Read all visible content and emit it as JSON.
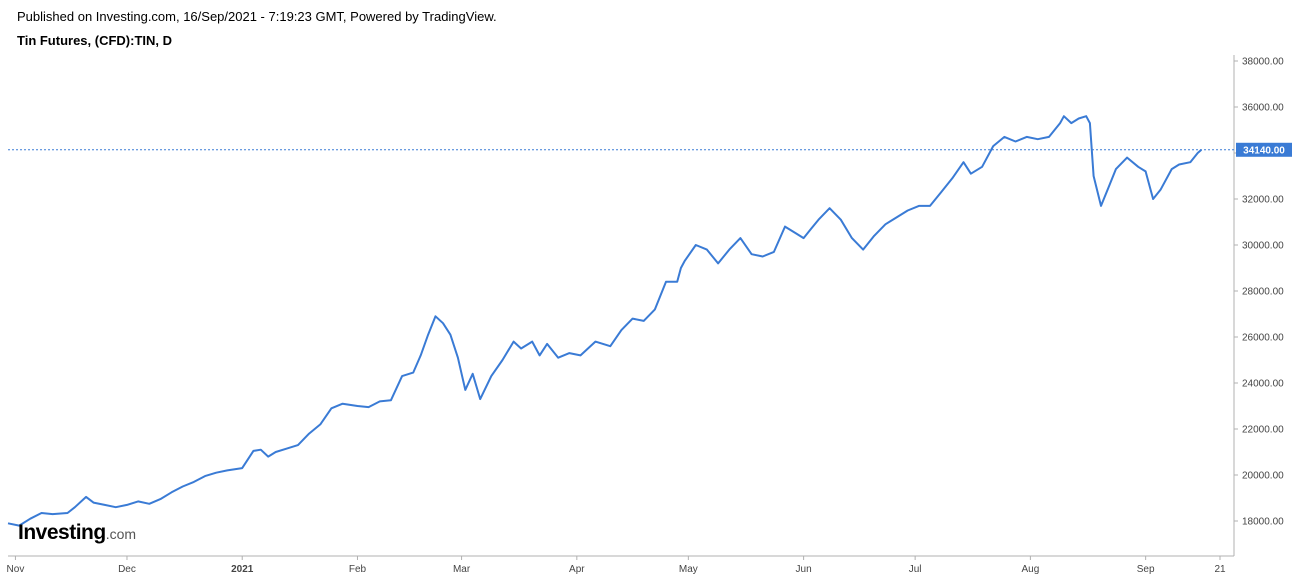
{
  "header": {
    "published": "Published on Investing.com, 16/Sep/2021 - 7:19:23 GMT, Powered by TradingView.",
    "instrument": "Tin Futures, (CFD):TIN, D"
  },
  "logo": {
    "brand": "Investing",
    "suffix": ".com"
  },
  "colors": {
    "line": "#3a7bd5",
    "price_label_bg": "#3a7bd5",
    "price_label_text": "#ffffff",
    "axis": "#b0b0b0"
  },
  "chart_data": {
    "type": "line",
    "title": "",
    "xlabel": "",
    "ylabel": "",
    "ylim": [
      16600,
      38400
    ],
    "y_ticks": [
      "38000.00",
      "36000.00",
      "34000.00",
      "32000.00",
      "30000.00",
      "28000.00",
      "26000.00",
      "24000.00",
      "22000.00",
      "20000.00",
      "18000.00"
    ],
    "y_tick_values": [
      38000,
      36000,
      34000,
      32000,
      30000,
      28000,
      26000,
      24000,
      22000,
      20000,
      18000
    ],
    "x_ticks": [
      "Nov",
      "Dec",
      "2021",
      "Feb",
      "Mar",
      "Apr",
      "May",
      "Jun",
      "Jul",
      "Aug",
      "Sep",
      "21"
    ],
    "x_tick_dates": [
      "2020-11-01",
      "2020-12-01",
      "2021-01-01",
      "2021-02-01",
      "2021-03-01",
      "2021-04-01",
      "2021-05-01",
      "2021-06-01",
      "2021-07-01",
      "2021-08-01",
      "2021-09-01",
      "2021-09-21"
    ],
    "last_price": 34140,
    "last_price_label": "34140.00",
    "grid": false,
    "series": [
      {
        "x": [
          "2020-10-30",
          "2020-11-02",
          "2020-11-05",
          "2020-11-08",
          "2020-11-11",
          "2020-11-15",
          "2020-11-17",
          "2020-11-20",
          "2020-11-22",
          "2020-11-25",
          "2020-11-28",
          "2020-12-01",
          "2020-12-04",
          "2020-12-07",
          "2020-12-10",
          "2020-12-13",
          "2020-12-16",
          "2020-12-19",
          "2020-12-22",
          "2020-12-25",
          "2020-12-28",
          "2021-01-01",
          "2021-01-04",
          "2021-01-06",
          "2021-01-08",
          "2021-01-10",
          "2021-01-13",
          "2021-01-16",
          "2021-01-19",
          "2021-01-22",
          "2021-01-25",
          "2021-01-28",
          "2021-02-01",
          "2021-02-04",
          "2021-02-07",
          "2021-02-10",
          "2021-02-13",
          "2021-02-16",
          "2021-02-18",
          "2021-02-20",
          "2021-02-22",
          "2021-02-24",
          "2021-02-26",
          "2021-02-28",
          "2021-03-02",
          "2021-03-04",
          "2021-03-06",
          "2021-03-09",
          "2021-03-12",
          "2021-03-15",
          "2021-03-17",
          "2021-03-20",
          "2021-03-22",
          "2021-03-24",
          "2021-03-27",
          "2021-03-30",
          "2021-04-02",
          "2021-04-06",
          "2021-04-10",
          "2021-04-13",
          "2021-04-16",
          "2021-04-19",
          "2021-04-22",
          "2021-04-25",
          "2021-04-28",
          "2021-04-29",
          "2021-04-30",
          "2021-05-03",
          "2021-05-06",
          "2021-05-09",
          "2021-05-12",
          "2021-05-15",
          "2021-05-18",
          "2021-05-21",
          "2021-05-24",
          "2021-05-27",
          "2021-05-30",
          "2021-06-01",
          "2021-06-03",
          "2021-06-05",
          "2021-06-08",
          "2021-06-11",
          "2021-06-14",
          "2021-06-17",
          "2021-06-20",
          "2021-06-23",
          "2021-06-26",
          "2021-06-29",
          "2021-07-02",
          "2021-07-05",
          "2021-07-08",
          "2021-07-11",
          "2021-07-14",
          "2021-07-16",
          "2021-07-19",
          "2021-07-22",
          "2021-07-25",
          "2021-07-28",
          "2021-07-31",
          "2021-08-03",
          "2021-08-06",
          "2021-08-09",
          "2021-08-10",
          "2021-08-12",
          "2021-08-14",
          "2021-08-16",
          "2021-08-17",
          "2021-08-18",
          "2021-08-20",
          "2021-08-22",
          "2021-08-24",
          "2021-08-27",
          "2021-08-30",
          "2021-09-01",
          "2021-09-03",
          "2021-09-05",
          "2021-09-08",
          "2021-09-10",
          "2021-09-13",
          "2021-09-15",
          "2021-09-16"
        ],
        "values": [
          17900,
          17800,
          18100,
          18350,
          18300,
          18350,
          18600,
          19050,
          18800,
          18700,
          18600,
          18700,
          18850,
          18750,
          18950,
          19250,
          19500,
          19700,
          19950,
          20100,
          20200,
          20300,
          21050,
          21100,
          20800,
          21000,
          21150,
          21300,
          21800,
          22200,
          22900,
          23100,
          23000,
          22950,
          23200,
          23250,
          24300,
          24450,
          25200,
          26100,
          26900,
          26600,
          26100,
          25100,
          23700,
          24400,
          23300,
          24300,
          25000,
          25800,
          25500,
          25800,
          25200,
          25700,
          25100,
          25300,
          25200,
          25800,
          25600,
          26300,
          26800,
          26700,
          27200,
          28400,
          28400,
          29000,
          29300,
          30000,
          29800,
          29200,
          29800,
          30300,
          29600,
          29500,
          29700,
          30800,
          30500,
          30300,
          30700,
          31100,
          31600,
          31100,
          30300,
          29800,
          30400,
          30900,
          31200,
          31500,
          31700,
          31700,
          32300,
          32900,
          33600,
          33100,
          33400,
          34300,
          34700,
          34500,
          34700,
          34600,
          34700,
          35300,
          35600,
          35300,
          35500,
          35600,
          35300,
          33000,
          31700,
          32500,
          33300,
          33800,
          33400,
          33200,
          32000,
          32400,
          33300,
          33500,
          33600,
          34000,
          34140
        ]
      }
    ]
  }
}
